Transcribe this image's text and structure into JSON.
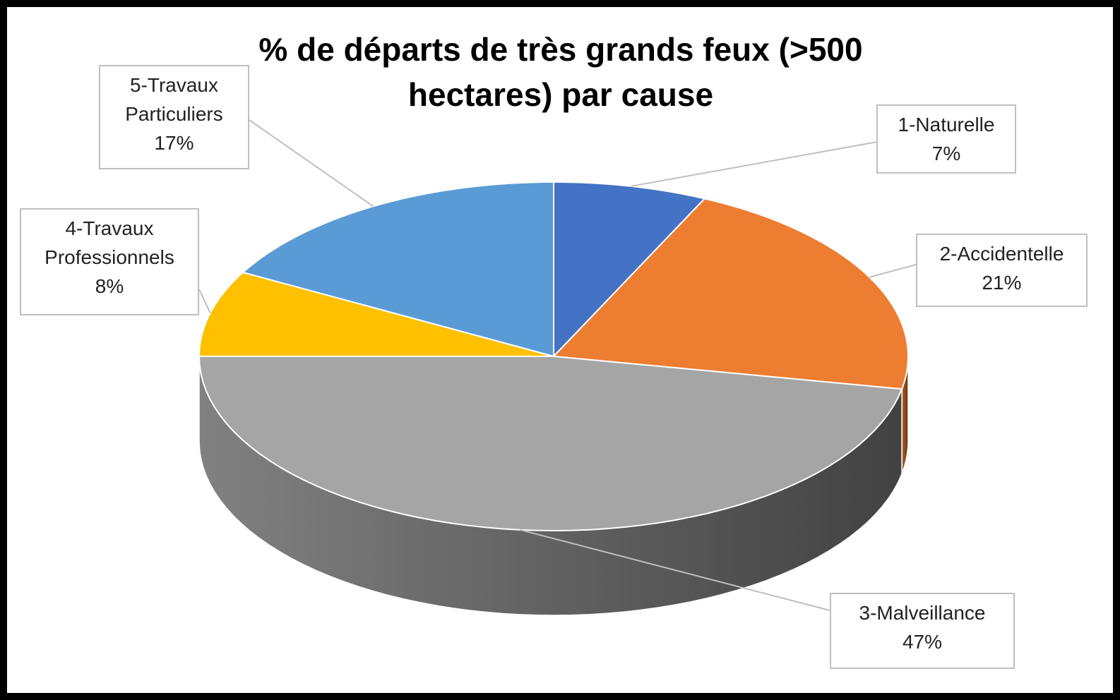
{
  "chart_data": {
    "type": "pie3d",
    "title": "% de départs de très grands feux (>500 hectares) par cause",
    "categories": [
      "1-Naturelle",
      "2-Accidentelle",
      "3-Malveillance",
      "4-Travaux Professionnels",
      "5-Travaux Particuliers"
    ],
    "values": [
      7,
      21,
      47,
      8,
      17
    ],
    "value_labels": [
      "7%",
      "21%",
      "47%",
      "8%",
      "17%"
    ],
    "colors": [
      "#4472c4",
      "#ed7d31",
      "#a5a5a5",
      "#ffc000",
      "#5b9bd5"
    ]
  }
}
